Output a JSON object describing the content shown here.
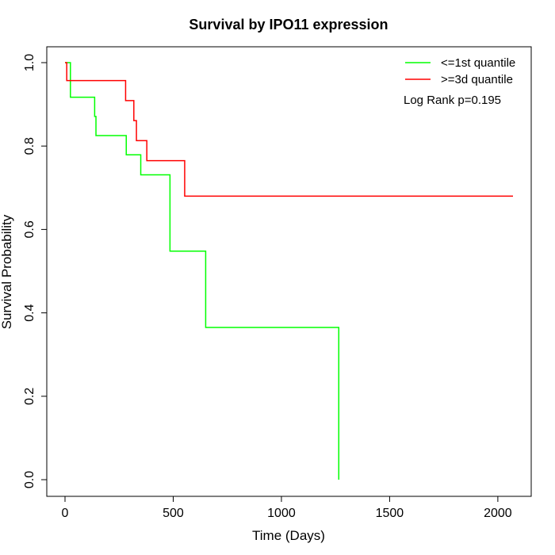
{
  "chart_data": {
    "type": "line",
    "title": "Survival by IPO11 expression",
    "xlabel": "Time (Days)",
    "ylabel": "Survival Probability",
    "xlim": [
      0,
      2070
    ],
    "ylim": [
      0,
      1
    ],
    "x_ticks": [
      0,
      500,
      1000,
      1500,
      2000
    ],
    "x_tick_labels": [
      "0",
      "500",
      "1000",
      "1500",
      "2000"
    ],
    "y_ticks": [
      0,
      0.2,
      0.4,
      0.6,
      0.8,
      1
    ],
    "y_tick_labels": [
      "0.0",
      "0.2",
      "0.4",
      "0.6",
      "0.8",
      "1.0"
    ],
    "grid": false,
    "legend_position": "top-right",
    "annotation": "Log Rank p=0.195",
    "series": [
      {
        "name": "<=1st quantile",
        "color": "#00ff00",
        "step": true,
        "points": [
          [
            0,
            1.0
          ],
          [
            25,
            1.0
          ],
          [
            25,
            0.917
          ],
          [
            137,
            0.917
          ],
          [
            137,
            0.871
          ],
          [
            143,
            0.871
          ],
          [
            143,
            0.825
          ],
          [
            283,
            0.825
          ],
          [
            283,
            0.779
          ],
          [
            350,
            0.779
          ],
          [
            350,
            0.731
          ],
          [
            485,
            0.731
          ],
          [
            485,
            0.548
          ],
          [
            650,
            0.548
          ],
          [
            650,
            0.365
          ],
          [
            1265,
            0.365
          ],
          [
            1265,
            0.0
          ]
        ]
      },
      {
        "name": ">=3d quantile",
        "color": "#ff0000",
        "step": true,
        "points": [
          [
            0,
            1.0
          ],
          [
            8,
            1.0
          ],
          [
            8,
            0.957
          ],
          [
            280,
            0.957
          ],
          [
            280,
            0.909
          ],
          [
            318,
            0.909
          ],
          [
            318,
            0.861
          ],
          [
            330,
            0.861
          ],
          [
            330,
            0.813
          ],
          [
            378,
            0.813
          ],
          [
            378,
            0.765
          ],
          [
            553,
            0.765
          ],
          [
            553,
            0.68
          ],
          [
            2070,
            0.68
          ]
        ]
      }
    ]
  }
}
